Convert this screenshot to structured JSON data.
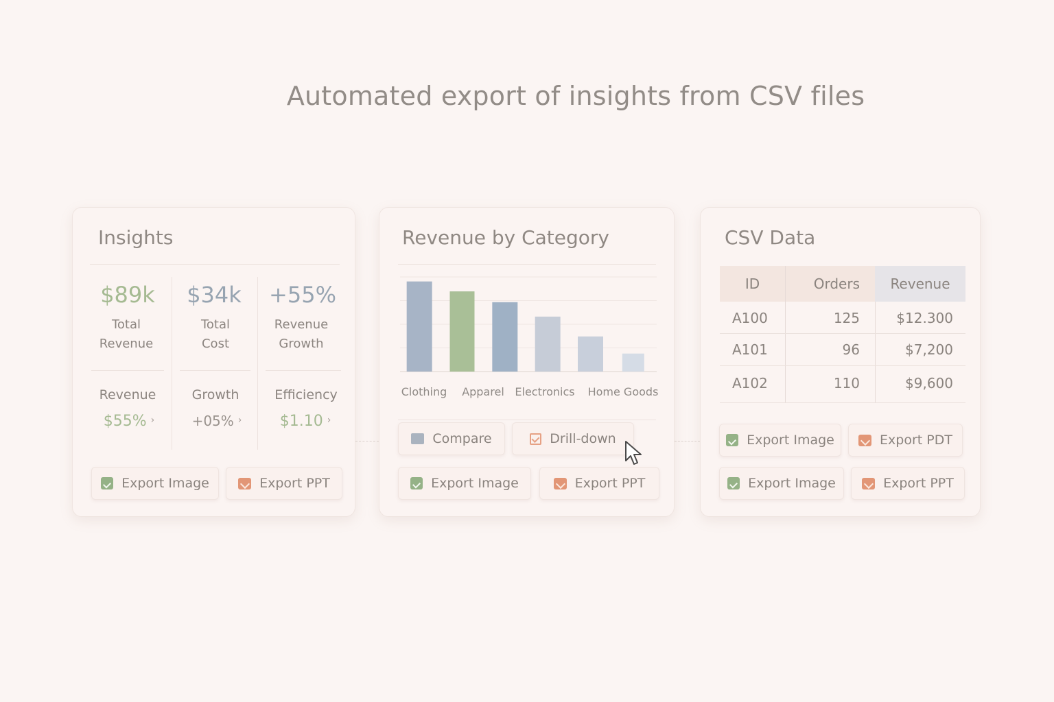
{
  "page": {
    "title": "Automated export of insights from CSV files"
  },
  "insights": {
    "title": "Insights",
    "kpis": [
      {
        "value": "$89k",
        "label_line1": "Total",
        "label_line2": "Revenue",
        "color": "#a5ba92"
      },
      {
        "value": "$34k",
        "label_line1": "Total",
        "label_line2": "Cost",
        "color": "#97a4b1"
      },
      {
        "value": "+55%",
        "label_line1": "Revenue",
        "label_line2": "Growth",
        "color": "#97a4b1"
      }
    ],
    "submetrics": [
      {
        "label": "Revenue",
        "value": "$55%",
        "color": "#a5ba92"
      },
      {
        "label": "Growth",
        "value": "+05%",
        "color": "#9a938e"
      },
      {
        "label": "Efficiency",
        "value": "$1.10",
        "color": "#a5ba92"
      }
    ],
    "chevron": "›",
    "buttons": {
      "export_image": "Export Image",
      "export_ppt": "Export PPT"
    }
  },
  "chart_card": {
    "title": "Revenue by Category",
    "buttons": {
      "compare": "Compare",
      "drill_down": "Drill-down",
      "export_image": "Export Image",
      "export_ppt": "Export PPT"
    }
  },
  "chart_data": {
    "type": "bar",
    "title": "Revenue by Category",
    "categories": [
      "Clothing",
      "Apparel",
      "Electronics",
      "",
      "Home Goods",
      ""
    ],
    "values": [
      100,
      89,
      77,
      61,
      39,
      20
    ],
    "bar_colors": [
      "#a7b4c6",
      "#a9bf97",
      "#9fb1c5",
      "#c6ccd7",
      "#c8cfdb",
      "#d5dce6"
    ],
    "ylim": [
      0,
      105
    ],
    "grid": true,
    "xlabel": "",
    "ylabel": ""
  },
  "csv": {
    "title": "CSV Data",
    "columns": [
      "ID",
      "Orders",
      "Revenue"
    ],
    "rows": [
      [
        "A100",
        "125",
        "$12.300"
      ],
      [
        "A101",
        "96",
        "$7,200"
      ],
      [
        "A102",
        "110",
        "$9,600"
      ]
    ],
    "buttons": {
      "export_image_1": "Export Image",
      "export_pdt": "Export PDT",
      "export_image_2": "Export Image",
      "export_ppt": "Export PPT"
    }
  }
}
